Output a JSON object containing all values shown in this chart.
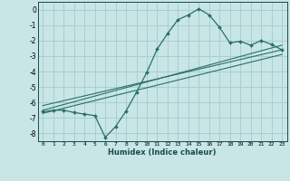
{
  "xlabel": "Humidex (Indice chaleur)",
  "background_color": "#c8e6e6",
  "grid_color": "#aacece",
  "line_color": "#2a6e6a",
  "xlim": [
    -0.5,
    23.5
  ],
  "ylim": [
    -8.5,
    0.5
  ],
  "yticks": [
    0,
    -1,
    -2,
    -3,
    -4,
    -5,
    -6,
    -7,
    -8
  ],
  "xticks": [
    0,
    1,
    2,
    3,
    4,
    5,
    6,
    7,
    8,
    9,
    10,
    11,
    12,
    13,
    14,
    15,
    16,
    17,
    18,
    19,
    20,
    21,
    22,
    23
  ],
  "main_line_x": [
    0,
    1,
    2,
    3,
    4,
    5,
    6,
    7,
    8,
    9,
    10,
    11,
    12,
    13,
    14,
    15,
    16,
    17,
    18,
    19,
    20,
    21,
    22,
    23
  ],
  "main_line_y": [
    -6.6,
    -6.5,
    -6.5,
    -6.65,
    -6.75,
    -6.85,
    -8.25,
    -7.55,
    -6.55,
    -5.35,
    -4.05,
    -2.55,
    -1.55,
    -0.65,
    -0.35,
    0.05,
    -0.35,
    -1.15,
    -2.15,
    -2.05,
    -2.3,
    -2.0,
    -2.25,
    -2.6
  ],
  "reg_line1_x": [
    0,
    23
  ],
  "reg_line1_y": [
    -6.5,
    -2.3
  ],
  "reg_line2_x": [
    0,
    23
  ],
  "reg_line2_y": [
    -6.2,
    -2.6
  ],
  "reg_line3_x": [
    0,
    23
  ],
  "reg_line3_y": [
    -6.7,
    -2.9
  ]
}
